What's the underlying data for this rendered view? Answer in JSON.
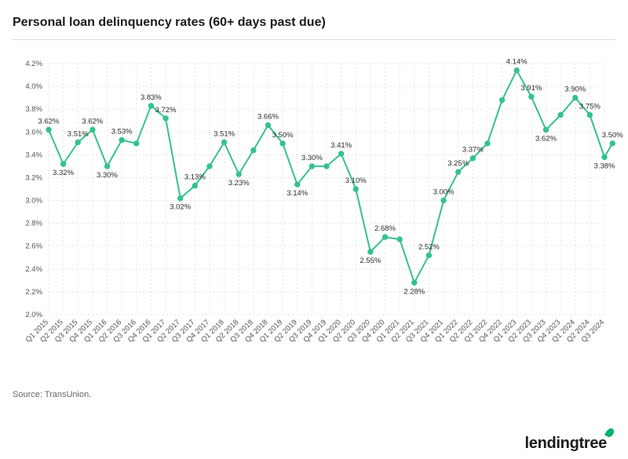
{
  "title": "Personal loan delinquency rates (60+ days past due)",
  "source_label": "Source: TransUnion.",
  "brand": "lendingtree",
  "chart": {
    "type": "line",
    "background_color": "#ffffff",
    "line_color": "#35c28a",
    "line_width": 2,
    "marker_color": "#35c28a",
    "marker_fill": "#ffffff",
    "marker_size": 3.2,
    "grid_color": "#e5e5e5",
    "axis_text_color": "#555555",
    "label_color": "#2b2b2b",
    "label_fontsize": 9.5,
    "axis_fontsize": 9.5,
    "title_fontsize": 16,
    "y_label_format": "pct1",
    "ylim": [
      2.0,
      4.2
    ],
    "ytick_step": 0.2,
    "yticks": [
      2.0,
      2.2,
      2.4,
      2.6,
      2.8,
      3.0,
      3.2,
      3.4,
      3.6,
      3.8,
      4.0,
      4.2
    ],
    "categories": [
      "Q1 2015",
      "Q2 2015",
      "Q3 2015",
      "Q4 2015",
      "Q1 2016",
      "Q2 2016",
      "Q3 2016",
      "Q4 2016",
      "Q1 2017",
      "Q2 2017",
      "Q3 2017",
      "Q4 2017",
      "Q1 2018",
      "Q2 2018",
      "Q3 2018",
      "Q4 2018",
      "Q1 2019",
      "Q2 2019",
      "Q3 2019",
      "Q4 2019",
      "Q1 2020",
      "Q2 2020",
      "Q3 2020",
      "Q4 2020",
      "Q1 2021",
      "Q2 2021",
      "Q3 2021",
      "Q4 2021",
      "Q1 2022",
      "Q2 2022",
      "Q3 2022",
      "Q4 2022",
      "Q1 2023",
      "Q2 2023",
      "Q3 2023",
      "Q4 2023",
      "Q1 2024",
      "Q2 2024",
      "Q3 2024"
    ],
    "values": [
      3.62,
      3.32,
      3.51,
      3.62,
      3.3,
      3.53,
      3.5,
      3.83,
      3.72,
      3.02,
      3.13,
      3.3,
      3.51,
      3.23,
      3.44,
      3.66,
      3.5,
      3.14,
      3.3,
      3.3,
      3.41,
      3.1,
      2.55,
      2.68,
      2.66,
      2.28,
      2.52,
      3.0,
      3.25,
      3.37,
      3.5,
      3.88,
      4.14,
      3.91,
      3.62,
      3.75,
      3.9,
      3.75,
      3.38
    ],
    "values_extra_tail": [
      3.5
    ],
    "point_labels": [
      "3.62%",
      "3.32%",
      "3.51%",
      "3.62%",
      "3.30%",
      "3.53%",
      "",
      "3.83%",
      "3.72%",
      "3.02%",
      "3.13%",
      "",
      "3.51%",
      "3.23%",
      "",
      "3.66%",
      "3.50%",
      "3.14%",
      "3.30%",
      "",
      "3.41%",
      "3.10%",
      "2.55%",
      "2.68%",
      "",
      "2.28%",
      "2.52%",
      "3.00%",
      "3.25%",
      "3.37%",
      "",
      "",
      "4.14%",
      "3.91%",
      "3.62%",
      "",
      "3.90%",
      "3.75%",
      "3.38%"
    ],
    "point_labels_extra_tail": [
      "3.50%"
    ]
  }
}
